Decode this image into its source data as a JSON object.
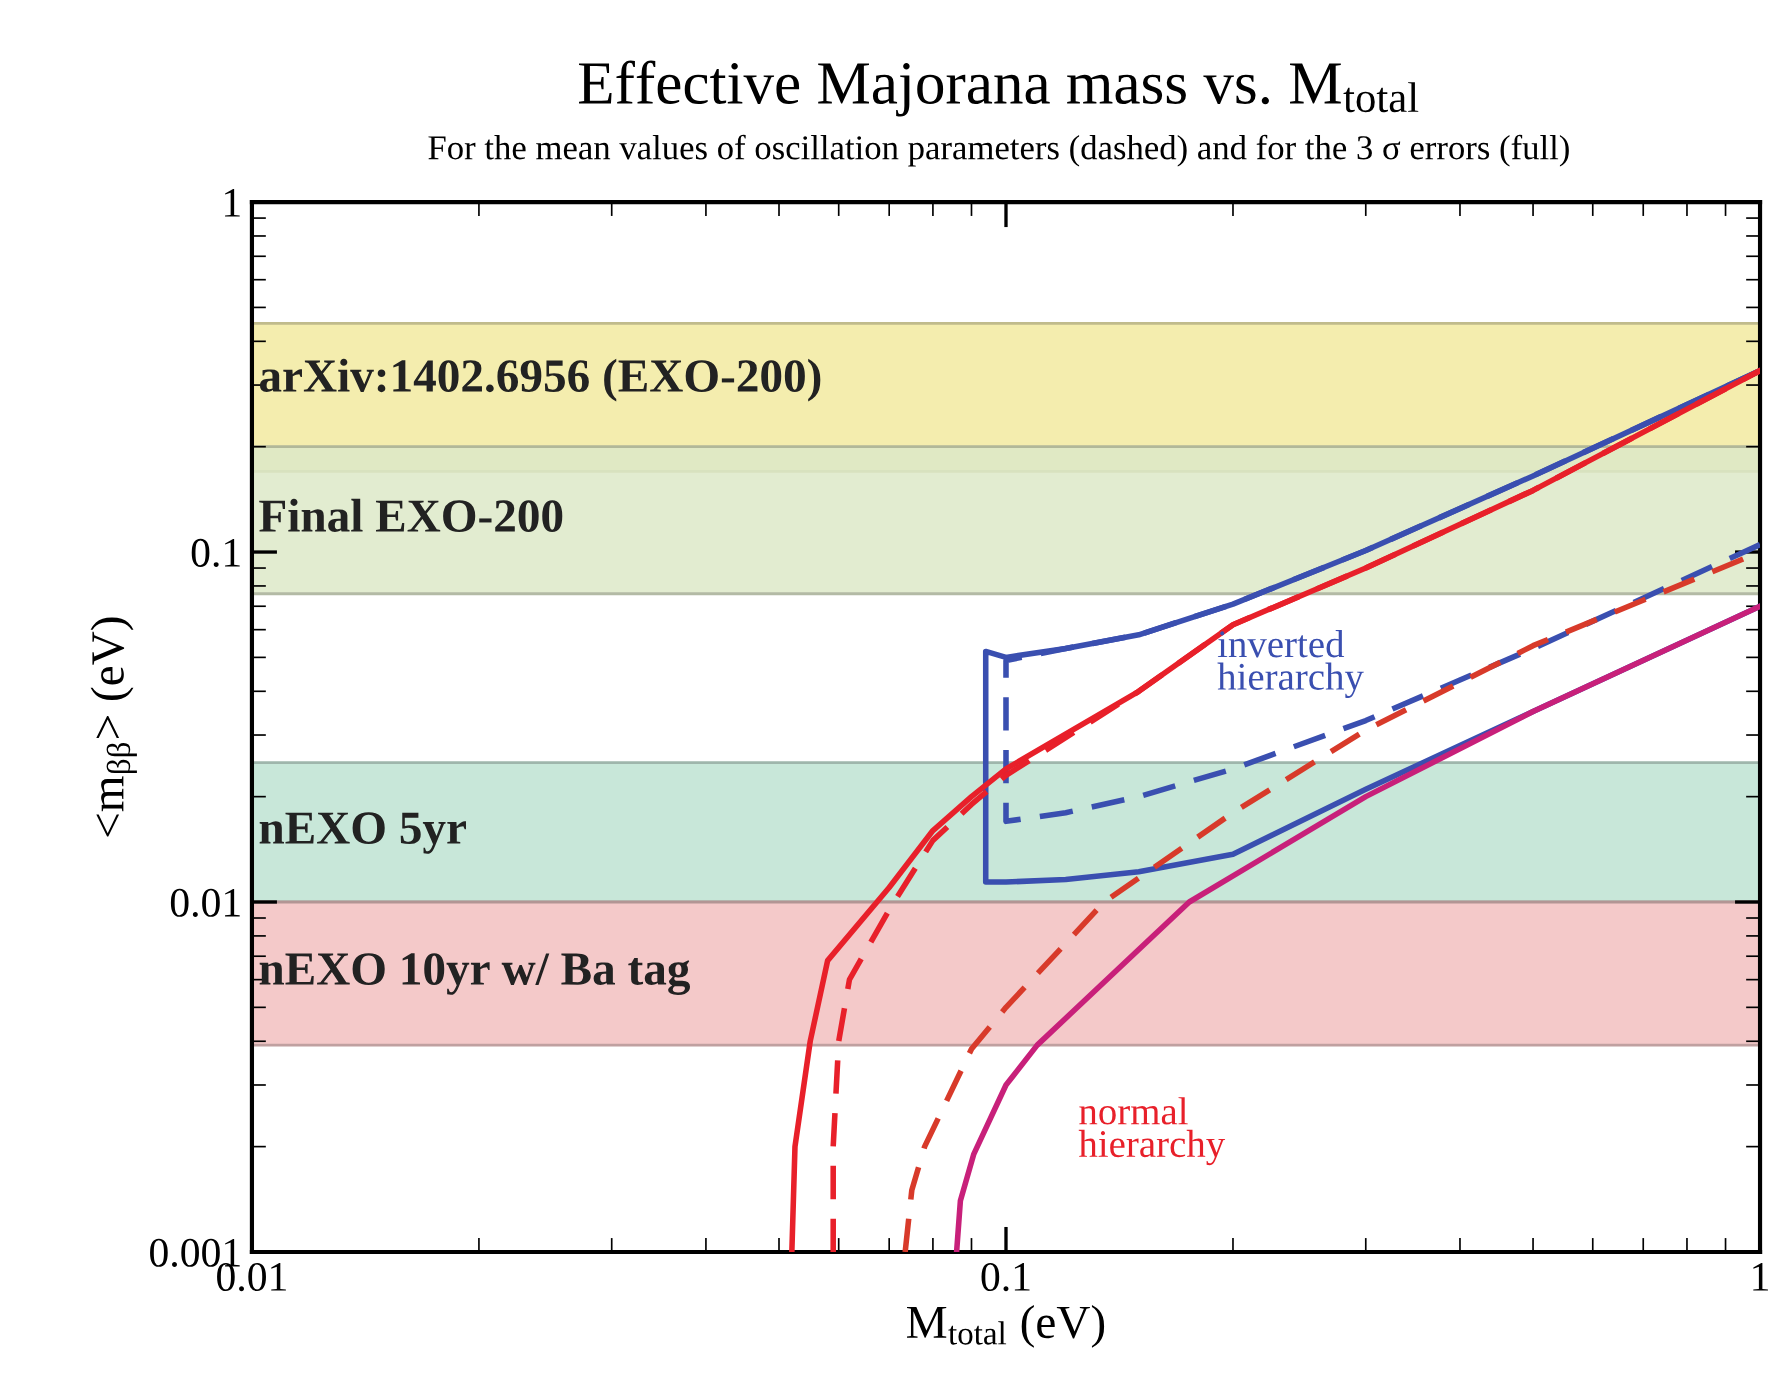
{
  "chart_data": {
    "type": "line",
    "title": "Effective Majorana mass vs. M$_{total}$",
    "subtitle": "For the mean values of oscillation parameters (dashed) and for the 3 σ errors (full)",
    "xlabel": "M$_{total}$ (eV)",
    "ylabel": "<m$_{ββ}$> (eV)",
    "log": "xy",
    "xlim": [
      0.01,
      1
    ],
    "ylim": [
      0.001,
      1
    ],
    "xticks": [
      0.01,
      0.1,
      1
    ],
    "yticks": [
      0.001,
      0.01,
      0.1,
      1
    ],
    "grid": false,
    "legend": false,
    "series": [
      {
        "color": "#3a4fb0",
        "line_style": "solid",
        "x": [
          1,
          0.5,
          0.3,
          0.2,
          0.15,
          0.12,
          0.1,
          0.094,
          0.094,
          0.1,
          0.12,
          0.15,
          0.2,
          0.3,
          0.5,
          1
        ],
        "values": [
          0.07,
          0.035,
          0.021,
          0.0137,
          0.0122,
          0.0116,
          0.0114,
          0.0114,
          0.052,
          0.05,
          0.053,
          0.058,
          0.071,
          0.101,
          0.165,
          0.33
        ]
      },
      {
        "color": "#3a4fb0",
        "line_style": "dashed",
        "x": [
          1,
          0.5,
          0.3,
          0.2,
          0.15,
          0.12,
          0.1,
          0.1,
          0.12,
          0.15,
          0.2,
          0.3,
          0.5,
          1
        ],
        "values": [
          0.105,
          0.053,
          0.033,
          0.024,
          0.02,
          0.018,
          0.017,
          0.049,
          0.053,
          0.058,
          0.071,
          0.101,
          0.165,
          0.33
        ]
      },
      {
        "color": "#e8202a",
        "line_style": "solid",
        "x": [
          0.052,
          0.0525,
          0.055,
          0.058,
          0.07,
          0.08,
          0.09,
          0.1,
          0.15,
          0.2,
          0.3,
          0.5,
          1
        ],
        "values": [
          0.001,
          0.002,
          0.004,
          0.0068,
          0.011,
          0.016,
          0.02,
          0.024,
          0.04,
          0.062,
          0.09,
          0.15,
          0.33
        ]
      },
      {
        "color": "#e8202a",
        "line_style": "dashed",
        "x": [
          0.059,
          0.059,
          0.06,
          0.062,
          0.07,
          0.08,
          0.09,
          0.1,
          0.15,
          0.2,
          0.3,
          0.5,
          1
        ],
        "values": [
          0.001,
          0.002,
          0.004,
          0.006,
          0.0095,
          0.015,
          0.019,
          0.023,
          0.04,
          0.062,
          0.09,
          0.15,
          0.33
        ]
      },
      {
        "color": "#d83a2a",
        "line_style": "dashed",
        "x": [
          0.0735,
          0.075,
          0.078,
          0.09,
          0.1,
          0.135,
          0.2,
          0.3,
          0.5,
          1
        ],
        "values": [
          0.001,
          0.0015,
          0.002,
          0.0038,
          0.005,
          0.01,
          0.018,
          0.031,
          0.054,
          0.1
        ]
      },
      {
        "color": "#c8207a",
        "line_style": "solid",
        "x": [
          0.086,
          0.087,
          0.0906,
          0.1,
          0.11,
          0.175,
          0.3,
          0.5,
          1
        ],
        "values": [
          0.001,
          0.0014,
          0.0019,
          0.003,
          0.0039,
          0.01,
          0.02,
          0.035,
          0.07
        ]
      }
    ],
    "bands": [
      {
        "axis": "y",
        "from": 0.17,
        "to": 0.45,
        "label": "arXiv:1402.6956 (EXO-200)",
        "color": "#f3eaa0"
      },
      {
        "axis": "y",
        "from": 0.076,
        "to": 0.2,
        "label": "Final EXO-200",
        "color": "#dde9c8"
      },
      {
        "axis": "y",
        "from": 0.01,
        "to": 0.025,
        "label": "nEXO 5yr",
        "color": "#bfe3d3"
      },
      {
        "axis": "y",
        "from": 0.0039,
        "to": 0.01,
        "label": "nEXO 10yr w/ Ba tag",
        "color": "#f3c0c0"
      }
    ],
    "annotations": [
      "inverted\nhierarchy",
      "normal\nhierarchy"
    ]
  }
}
